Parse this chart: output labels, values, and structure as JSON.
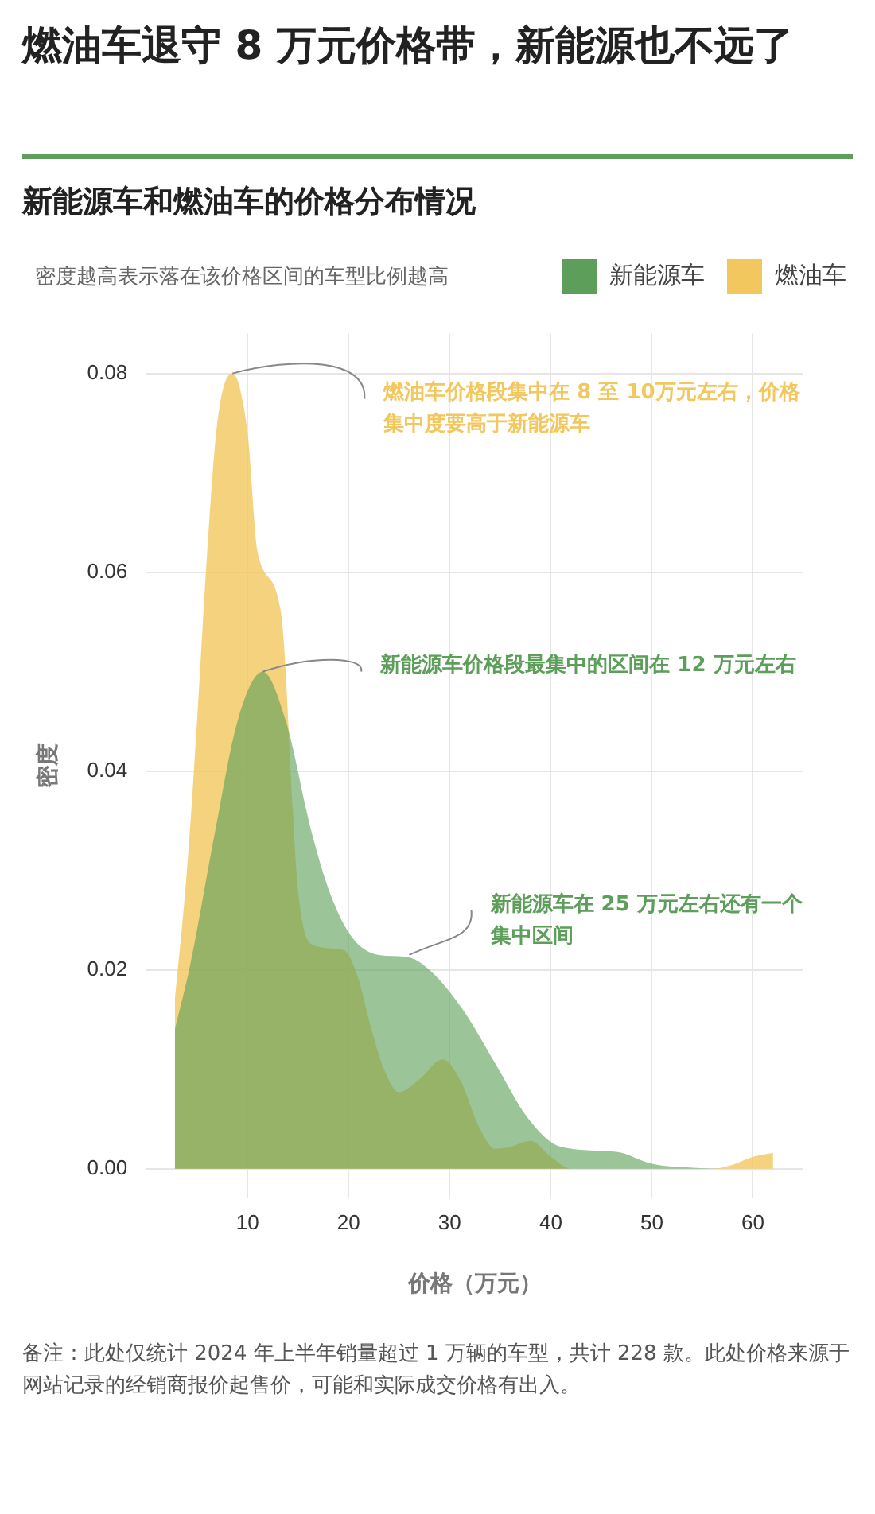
{
  "chart_data": {
    "type": "area",
    "title": "燃油车退守 8 万元价格带，新能源也不远了",
    "subtitle": "新能源车和燃油车的价格分布情况",
    "xlabel": "价格（万元）",
    "ylabel": "密度",
    "xlim": [
      0,
      65
    ],
    "xticks": [
      10,
      20,
      30,
      40,
      50,
      60
    ],
    "ylim": [
      -0.003,
      0.084
    ],
    "yticks": [
      {
        "value": 0,
        "label": "0.00"
      },
      0.02,
      0.04,
      0.06,
      0.08
    ],
    "grid": true,
    "legend": "top right",
    "series": [
      {
        "name": "新能源车",
        "color": "#5d9f5a",
        "x": [
          2.8,
          4.3,
          6.8,
          9,
          11.5,
          13.8,
          16.3,
          18.2,
          20.4,
          23,
          25.8,
          28,
          31.3,
          34.5,
          37.8,
          41,
          46.5,
          50,
          54,
          57
        ],
        "values": [
          0.014,
          0.0204,
          0.034,
          0.045,
          0.05,
          0.045,
          0.034,
          0.0276,
          0.0232,
          0.0215,
          0.0213,
          0.02,
          0.016,
          0.0106,
          0.005,
          0.0022,
          0.0017,
          0.0005,
          0.0001,
          0
        ]
      },
      {
        "name": "燃油车",
        "color": "#f2c75e",
        "x": [
          2.8,
          4,
          5,
          6,
          7,
          8.5,
          10,
          11,
          13.3,
          15,
          16.5,
          19.5,
          21,
          22,
          23.5,
          25,
          27,
          29.3,
          31,
          33,
          34.5,
          36,
          38,
          40,
          42,
          56,
          58,
          60,
          62
        ],
        "values": [
          0.017,
          0.03,
          0.045,
          0.062,
          0.075,
          0.08,
          0.074,
          0.062,
          0.056,
          0.028,
          0.0225,
          0.022,
          0.019,
          0.015,
          0.01,
          0.0077,
          0.009,
          0.011,
          0.009,
          0.004,
          0.002,
          0.0022,
          0.0028,
          0.0012,
          0,
          0,
          0.0004,
          0.0012,
          0.0016
        ]
      }
    ],
    "annotations": [
      "密度越高表示落在该价格区间的车型比例越高",
      {
        "text": "燃油车价格段集中在 8 至 10万元左右，价格集中度要高于新能源车",
        "x": 8.5,
        "y": 0.08
      },
      {
        "text": "新能源车价格段最集中的区间在 12 万元左右",
        "x": 11.5,
        "y": 0.05
      },
      {
        "text": "新能源车在 25 万元左右还有一个集中区间",
        "x": 26,
        "y": 0.0215
      },
      "备注：此处仅统计 2024 年上半年销量超过 1 万辆的车型，共计 228 款。此处价格来源于网站记录的经销商报价起售价，可能和实际成交价格有出入。"
    ]
  }
}
